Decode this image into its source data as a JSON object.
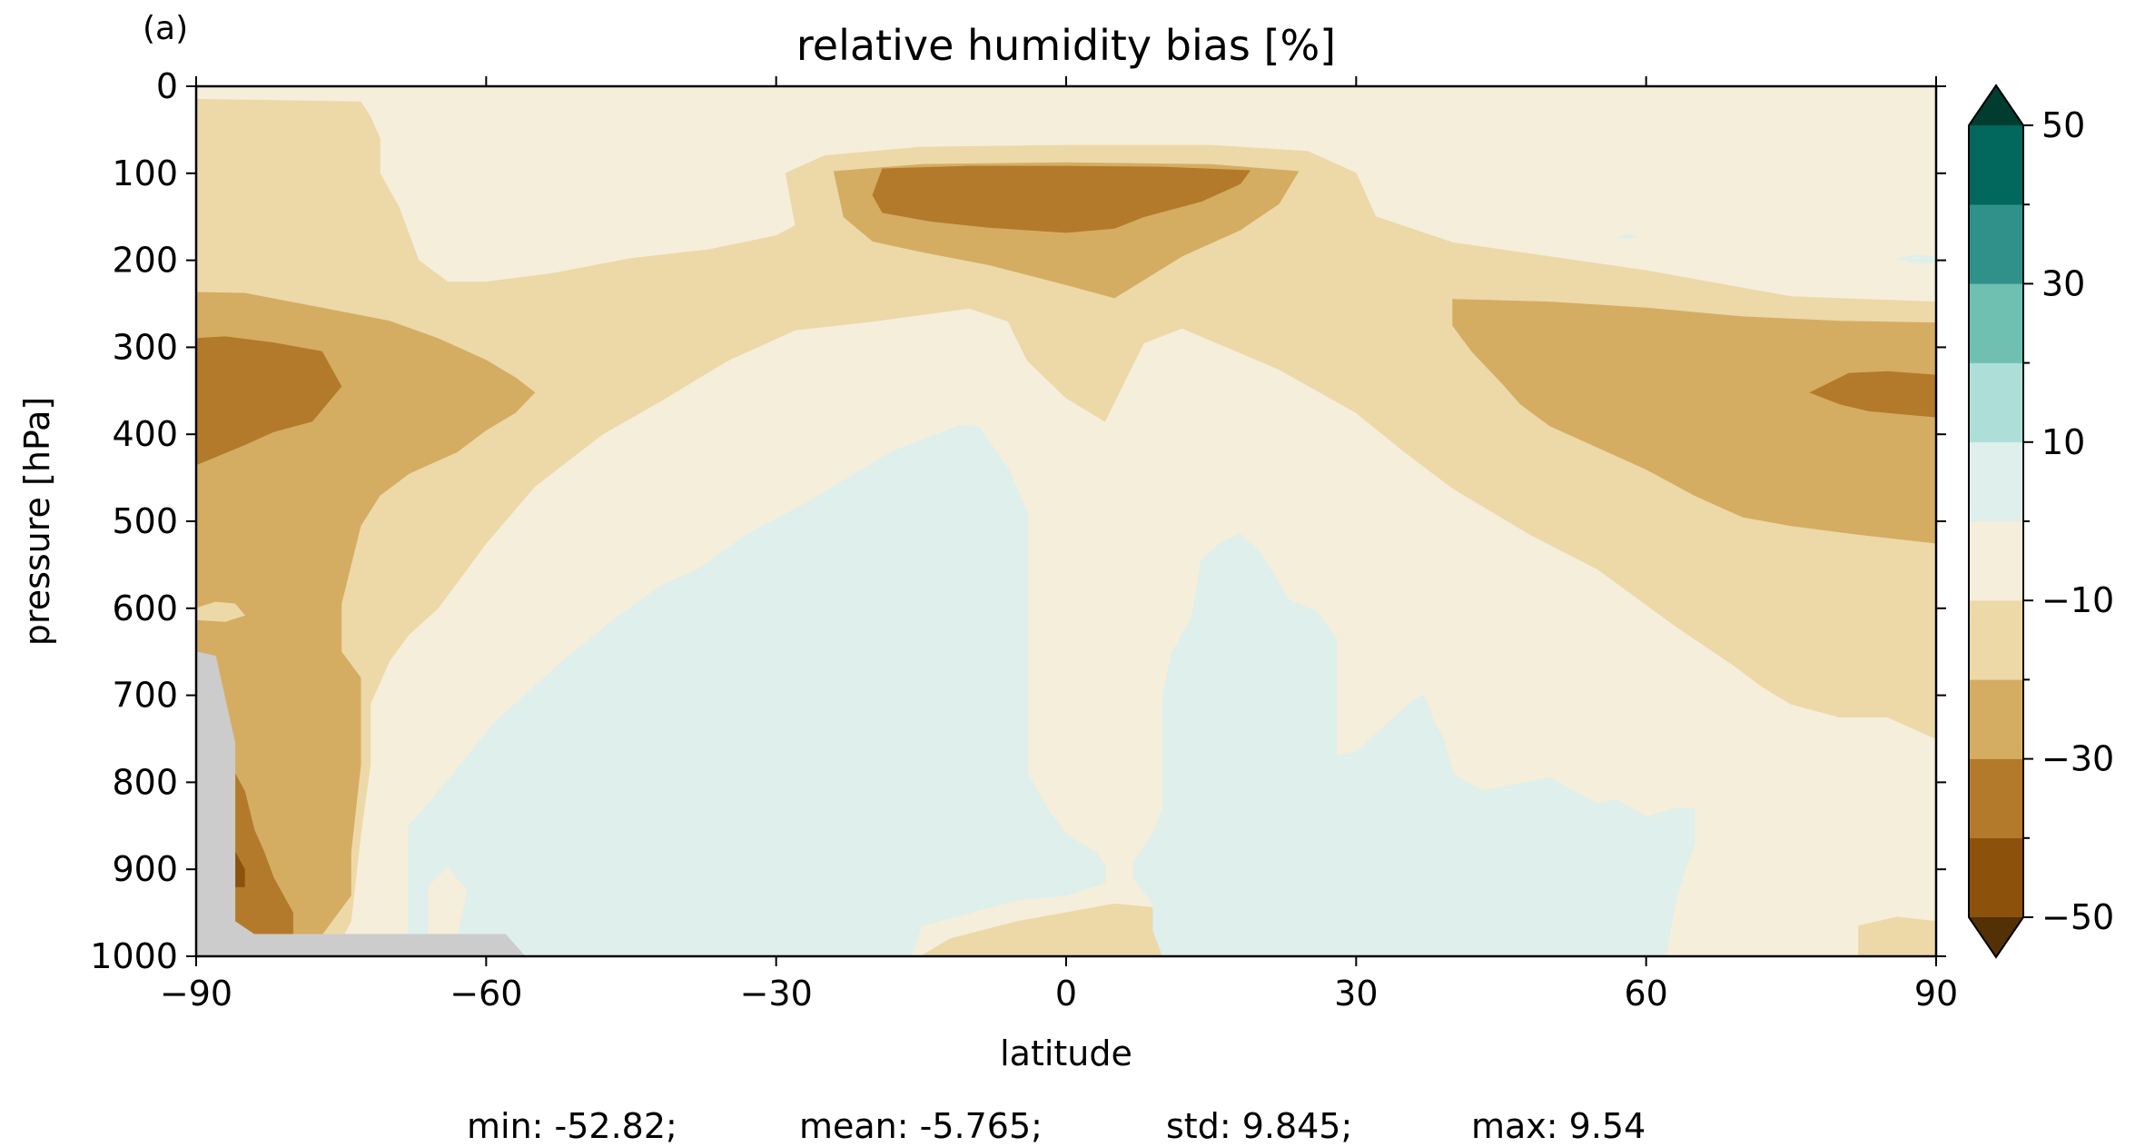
{
  "chart_data": {
    "type": "heatmap",
    "subtype": "filled-contour",
    "panel_label": "(a)",
    "title": "relative humidity bias [%]",
    "xlabel": "latitude",
    "ylabel": "pressure [hPa]",
    "xlim": [
      -90,
      90
    ],
    "ylim": [
      1000,
      0
    ],
    "x_ticks": [
      -90,
      -60,
      -30,
      0,
      30,
      60,
      90
    ],
    "y_ticks": [
      0,
      100,
      200,
      300,
      400,
      500,
      600,
      700,
      800,
      900,
      1000
    ],
    "colorbar": {
      "levels": [
        -50,
        -40,
        -30,
        -20,
        -10,
        0,
        10,
        20,
        30,
        40,
        50
      ],
      "labeled_ticks": [
        50,
        30,
        10,
        -10,
        -30,
        -50
      ],
      "extend": "both",
      "colors": [
        "#8c510a",
        "#b37a2b",
        "#d4ad62",
        "#edd8a8",
        "#f5eedb",
        "#deefec",
        "#addfd8",
        "#70c0b2",
        "#2f9189",
        "#02675c"
      ],
      "under_color": "#543005",
      "over_color": "#003c30"
    },
    "missing_color": "#cccccc",
    "contours": [
      {
        "level": "-10 to 0",
        "color": "#f5eedb",
        "points": [
          [
            -90,
            0
          ],
          [
            90,
            0
          ],
          [
            90,
            1000
          ],
          [
            -90,
            1000
          ]
        ]
      },
      {
        "level": "-20 to -10",
        "color": "#edd8a8",
        "points": [
          [
            -90,
            15
          ],
          [
            -73,
            18
          ],
          [
            -72,
            35
          ],
          [
            -71,
            60
          ],
          [
            -71,
            100
          ],
          [
            -69,
            140
          ],
          [
            -67,
            200
          ],
          [
            -64,
            225
          ],
          [
            -60,
            225
          ],
          [
            -53,
            215
          ],
          [
            -45,
            198
          ],
          [
            -37,
            188
          ],
          [
            -30,
            172
          ],
          [
            -28,
            160
          ],
          [
            -29,
            100
          ],
          [
            -25,
            80
          ],
          [
            -15,
            70
          ],
          [
            0,
            68
          ],
          [
            15,
            68
          ],
          [
            25,
            75
          ],
          [
            30,
            100
          ],
          [
            32,
            150
          ],
          [
            40,
            180
          ],
          [
            60,
            212
          ],
          [
            75,
            242
          ],
          [
            90,
            248
          ],
          [
            90,
            750
          ],
          [
            85,
            725
          ],
          [
            80,
            725
          ],
          [
            75,
            710
          ],
          [
            72,
            690
          ],
          [
            69,
            665
          ],
          [
            63,
            620
          ],
          [
            55,
            555
          ],
          [
            48,
            515
          ],
          [
            40,
            462
          ],
          [
            35,
            420
          ],
          [
            30,
            375
          ],
          [
            22,
            325
          ],
          [
            12,
            278
          ],
          [
            8,
            295
          ],
          [
            4,
            385
          ],
          [
            0,
            358
          ],
          [
            -4,
            315
          ],
          [
            -6,
            270
          ],
          [
            -10,
            255
          ],
          [
            -20,
            270
          ],
          [
            -28,
            280
          ],
          [
            -35,
            315
          ],
          [
            -42,
            362
          ],
          [
            -48,
            400
          ],
          [
            -55,
            460
          ],
          [
            -60,
            525
          ],
          [
            -65,
            600
          ],
          [
            -68,
            630
          ],
          [
            -70,
            660
          ],
          [
            -72,
            710
          ],
          [
            -72,
            780
          ],
          [
            -73,
            860
          ],
          [
            -74,
            960
          ],
          [
            -76,
            1000
          ],
          [
            -90,
            1000
          ]
        ]
      },
      {
        "level": "-20 to -10",
        "color": "#edd8a8",
        "points": [
          [
            -15,
            1000
          ],
          [
            -12,
            980
          ],
          [
            -5,
            960
          ],
          [
            5,
            940
          ],
          [
            10,
            945
          ],
          [
            10,
            1000
          ]
        ]
      },
      {
        "level": "-20 to -10",
        "color": "#edd8a8",
        "points": [
          [
            82,
            1000
          ],
          [
            82,
            965
          ],
          [
            86,
            955
          ],
          [
            90,
            960
          ],
          [
            90,
            1000
          ]
        ]
      },
      {
        "level": "-30 to -20",
        "color": "#d4ad62",
        "points": [
          [
            -90,
            237
          ],
          [
            -85,
            238
          ],
          [
            -77,
            255
          ],
          [
            -70,
            270
          ],
          [
            -65,
            290
          ],
          [
            -60,
            315
          ],
          [
            -57,
            335
          ],
          [
            -55,
            352
          ],
          [
            -57,
            375
          ],
          [
            -60,
            395
          ],
          [
            -63,
            420
          ],
          [
            -68,
            445
          ],
          [
            -71,
            470
          ],
          [
            -73,
            505
          ],
          [
            -74,
            550
          ],
          [
            -75,
            595
          ],
          [
            -75,
            650
          ],
          [
            -73,
            680
          ],
          [
            -73,
            780
          ],
          [
            -74,
            880
          ],
          [
            -74,
            930
          ],
          [
            -76,
            960
          ],
          [
            -77,
            975
          ],
          [
            -90,
            975
          ]
        ]
      },
      {
        "level": "-30 to -20",
        "color": "#d4ad62",
        "points": [
          [
            -24,
            98
          ],
          [
            -15,
            90
          ],
          [
            0,
            88
          ],
          [
            15,
            90
          ],
          [
            24,
            98
          ],
          [
            22,
            135
          ],
          [
            18,
            165
          ],
          [
            12,
            195
          ],
          [
            5,
            243
          ],
          [
            0,
            228
          ],
          [
            -8,
            205
          ],
          [
            -15,
            190
          ],
          [
            -20,
            178
          ],
          [
            -23,
            150
          ]
        ]
      },
      {
        "level": "-30 to -20",
        "color": "#d4ad62",
        "points": [
          [
            40,
            245
          ],
          [
            50,
            248
          ],
          [
            60,
            255
          ],
          [
            70,
            265
          ],
          [
            80,
            270
          ],
          [
            90,
            272
          ],
          [
            90,
            525
          ],
          [
            82,
            515
          ],
          [
            75,
            505
          ],
          [
            70,
            495
          ],
          [
            65,
            470
          ],
          [
            60,
            440
          ],
          [
            55,
            415
          ],
          [
            50,
            390
          ],
          [
            47,
            365
          ],
          [
            45,
            340
          ],
          [
            42,
            305
          ],
          [
            40,
            275
          ]
        ]
      },
      {
        "level": "-40 to -30",
        "color": "#b37a2b",
        "points": [
          [
            -90,
            290
          ],
          [
            -87,
            288
          ],
          [
            -82,
            295
          ],
          [
            -77,
            305
          ],
          [
            -75,
            345
          ],
          [
            -78,
            385
          ],
          [
            -82,
            397
          ],
          [
            -85,
            412
          ],
          [
            -90,
            435
          ]
        ]
      },
      {
        "level": "-40 to -30",
        "color": "#b37a2b",
        "points": [
          [
            -19,
            95
          ],
          [
            -10,
            92
          ],
          [
            0,
            92
          ],
          [
            10,
            93
          ],
          [
            19,
            97
          ],
          [
            18,
            112
          ],
          [
            14,
            132
          ],
          [
            8,
            150
          ],
          [
            5,
            163
          ],
          [
            0,
            168
          ],
          [
            -8,
            162
          ],
          [
            -14,
            155
          ],
          [
            -19,
            145
          ],
          [
            -20,
            125
          ]
        ]
      },
      {
        "level": "-40 to -30",
        "color": "#b37a2b",
        "points": [
          [
            77,
            352
          ],
          [
            81,
            330
          ],
          [
            85,
            328
          ],
          [
            90,
            332
          ],
          [
            90,
            380
          ],
          [
            87,
            377
          ],
          [
            83,
            373
          ],
          [
            80,
            365
          ]
        ]
      },
      {
        "level": "-40 to -30",
        "color": "#b37a2b",
        "points": [
          [
            -86,
            790
          ],
          [
            -85,
            810
          ],
          [
            -84,
            855
          ],
          [
            -83,
            880
          ],
          [
            -82,
            910
          ],
          [
            -81,
            930
          ],
          [
            -80,
            950
          ],
          [
            -80,
            975
          ],
          [
            -86,
            975
          ]
        ]
      },
      {
        "level": "-50 to -40",
        "color": "#8c510a",
        "points": [
          [
            -86,
            880
          ],
          [
            -85,
            900
          ],
          [
            -85,
            920
          ],
          [
            -86,
            920
          ]
        ]
      },
      {
        "level": "-20 to -10",
        "color": "#edd8a8",
        "points": [
          [
            -90,
            600
          ],
          [
            -88,
            593
          ],
          [
            -86,
            595
          ],
          [
            -85,
            608
          ],
          [
            -87,
            615
          ],
          [
            -90,
            613
          ]
        ]
      },
      {
        "level": "0 to 10",
        "color": "#deefec",
        "points": [
          [
            -68,
            1000
          ],
          [
            -68,
            850
          ],
          [
            -66,
            825
          ],
          [
            -63,
            785
          ],
          [
            -59,
            730
          ],
          [
            -56,
            700
          ],
          [
            -52,
            660
          ],
          [
            -47,
            615
          ],
          [
            -42,
            575
          ],
          [
            -38,
            555
          ],
          [
            -33,
            515
          ],
          [
            -27,
            480
          ],
          [
            -18,
            420
          ],
          [
            -11,
            390
          ],
          [
            -9,
            392
          ],
          [
            -6,
            440
          ],
          [
            -4,
            490
          ],
          [
            -4,
            600
          ],
          [
            -4,
            700
          ],
          [
            -4,
            790
          ],
          [
            -2,
            830
          ],
          [
            0,
            860
          ],
          [
            3,
            880
          ],
          [
            4,
            895
          ],
          [
            4,
            915
          ],
          [
            0,
            930
          ],
          [
            -5,
            935
          ],
          [
            -10,
            950
          ],
          [
            -15,
            965
          ],
          [
            -16,
            1000
          ]
        ]
      },
      {
        "level": "0 to 10",
        "color": "#deefec",
        "points": [
          [
            10,
            1000
          ],
          [
            9,
            970
          ],
          [
            9,
            940
          ],
          [
            7,
            910
          ],
          [
            7,
            890
          ],
          [
            9,
            860
          ],
          [
            10,
            830
          ],
          [
            10,
            780
          ],
          [
            10,
            700
          ],
          [
            11,
            650
          ],
          [
            13,
            610
          ],
          [
            14,
            545
          ],
          [
            16,
            525
          ],
          [
            18,
            515
          ],
          [
            20,
            535
          ],
          [
            23,
            590
          ],
          [
            26,
            605
          ],
          [
            28,
            635
          ],
          [
            28,
            700
          ],
          [
            28,
            770
          ],
          [
            30,
            765
          ],
          [
            33,
            735
          ],
          [
            36,
            705
          ],
          [
            37,
            700
          ],
          [
            38,
            730
          ],
          [
            39,
            750
          ],
          [
            40,
            790
          ],
          [
            43,
            810
          ],
          [
            50,
            795
          ],
          [
            55,
            825
          ],
          [
            57,
            820
          ],
          [
            60,
            840
          ],
          [
            63,
            830
          ],
          [
            65,
            830
          ],
          [
            65,
            870
          ],
          [
            64,
            900
          ],
          [
            63,
            940
          ],
          [
            62,
            1000
          ]
        ]
      },
      {
        "level": "0 to 10",
        "color": "#deefec",
        "points": [
          [
            -67,
            1000
          ],
          [
            -67,
            890
          ],
          [
            -65,
            870
          ],
          [
            -63,
            895
          ],
          [
            -61,
            918
          ],
          [
            -62,
            950
          ],
          [
            -63,
            1000
          ]
        ]
      },
      {
        "level": "0 to 10",
        "color": "#deefec",
        "points": [
          [
            57,
            173
          ],
          [
            58,
            171
          ],
          [
            59,
            173
          ],
          [
            58,
            175
          ]
        ]
      },
      {
        "level": "0 to 10",
        "color": "#deefec",
        "points": [
          [
            86,
            198
          ],
          [
            88,
            194
          ],
          [
            90,
            196
          ],
          [
            90,
            202
          ],
          [
            88,
            203
          ]
        ]
      },
      {
        "level": "-10 to 0",
        "color": "#f5eedb",
        "points": [
          [
            -66,
            1000
          ],
          [
            -66,
            920
          ],
          [
            -64,
            898
          ],
          [
            -62,
            925
          ],
          [
            -63,
            975
          ],
          [
            -64,
            1000
          ]
        ]
      },
      {
        "level": "missing",
        "color": "#cccccc",
        "points": [
          [
            -90,
            650
          ],
          [
            -88,
            655
          ],
          [
            -86,
            755
          ],
          [
            -86,
            960
          ],
          [
            -84,
            975
          ],
          [
            -58,
            975
          ],
          [
            -56,
            1000
          ],
          [
            -90,
            1000
          ]
        ]
      }
    ],
    "statistics": {
      "min": "min: -52.82;",
      "mean": "mean: -5.765;",
      "std": "std: 9.845;",
      "max": "max: 9.54"
    }
  }
}
